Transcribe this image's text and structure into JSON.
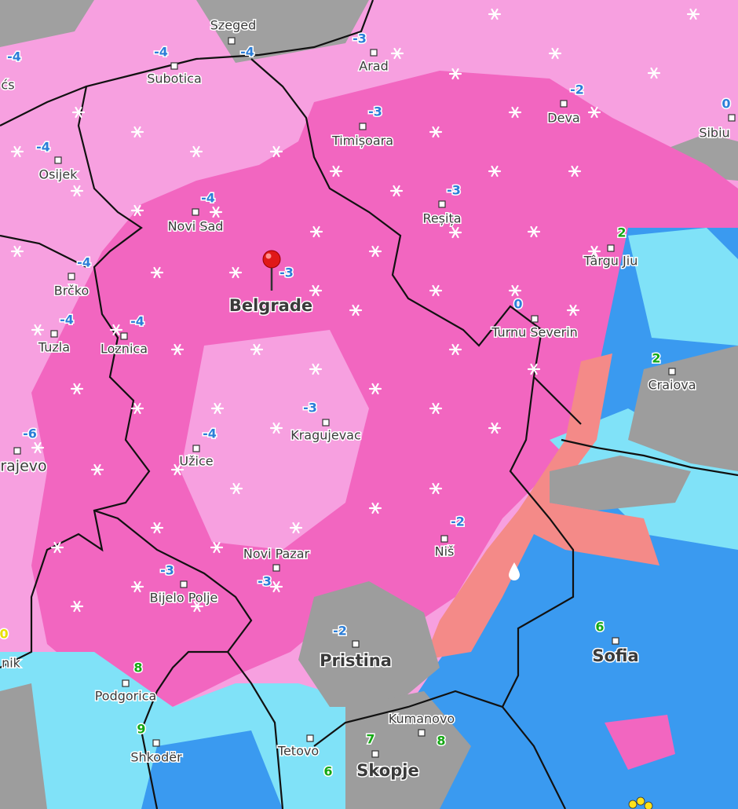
{
  "cities": [
    "Szeged",
    "Subotica",
    "Arad",
    "Deva",
    "Sibiu",
    "Timișoara",
    "Osijek",
    "Novi Sad",
    "Reșița",
    "Târgu Jiu",
    "Brčko",
    "Belgrade",
    "Turnu Severin",
    "Tuzla",
    "Loznica",
    "Craiova",
    "Kragujevac",
    "Užice",
    "rajevo",
    "Niš",
    "Novi Pazar",
    "Bijelo Polje",
    "Pristina",
    "Sofia",
    "Podgorica",
    "nik",
    "Kumanovo",
    "Shkodër",
    "Tetovo",
    "Skopje",
    "ćs"
  ],
  "temperatures": [
    -4,
    -4,
    -4,
    -3,
    -2,
    0,
    -3,
    -4,
    -4,
    -3,
    2,
    -4,
    -3,
    -4,
    -4,
    0,
    2,
    -3,
    -6,
    -4,
    -2,
    -3,
    -3,
    -2,
    6,
    8,
    0,
    9,
    7,
    8,
    6
  ]
}
